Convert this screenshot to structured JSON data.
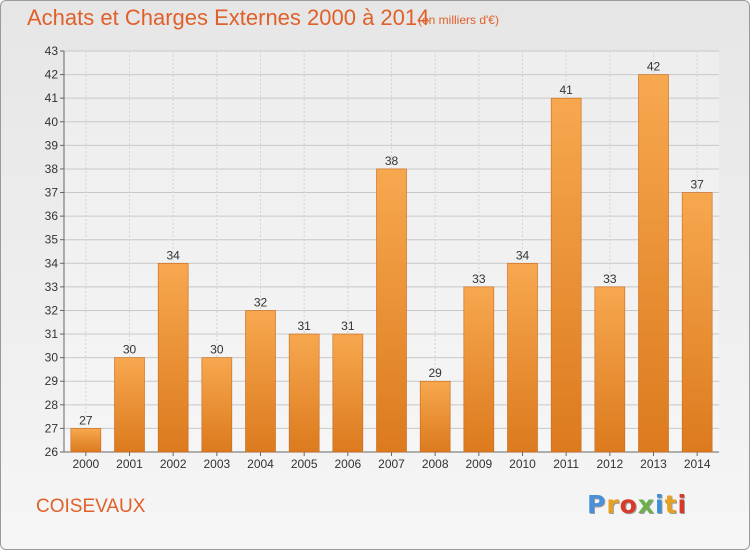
{
  "header": {
    "title": "Achats et Charges Externes 2000 à 2014",
    "subtitle": "(en milliers d'€)"
  },
  "footer": {
    "place": "COISEVAUX",
    "logo_text": "Proxiti",
    "logo_colors": [
      "#4a90d9",
      "#e8a020",
      "#d83a2a",
      "#6ab04c",
      "#3a8fd9",
      "#e8a020",
      "#d83a2a"
    ]
  },
  "colors": {
    "bar_light": "#f7a84f",
    "bar_dark": "#dc7a1e",
    "bar_edge": "#c8671a",
    "title": "#e0602a"
  },
  "chart_data": {
    "type": "bar",
    "title": "Achats et Charges Externes 2000 à 2014",
    "subtitle": "(en milliers d'€)",
    "xlabel": "",
    "ylabel": "",
    "categories": [
      "2000",
      "2001",
      "2002",
      "2003",
      "2004",
      "2005",
      "2006",
      "2007",
      "2008",
      "2009",
      "2010",
      "2011",
      "2012",
      "2013",
      "2014"
    ],
    "values": [
      27,
      30,
      34,
      30,
      32,
      31,
      31,
      38,
      29,
      33,
      34,
      41,
      33,
      42,
      37
    ],
    "data_labels": [
      "27",
      "30",
      "34",
      "30",
      "32",
      "31",
      "31",
      "38",
      "29",
      "33",
      "34",
      "41",
      "33",
      "42",
      "37"
    ],
    "ylim": [
      26,
      43
    ],
    "yticks": [
      26,
      27,
      28,
      29,
      30,
      31,
      32,
      33,
      34,
      35,
      36,
      37,
      38,
      39,
      40,
      41,
      42,
      43
    ],
    "grid": true,
    "legend": "none"
  }
}
